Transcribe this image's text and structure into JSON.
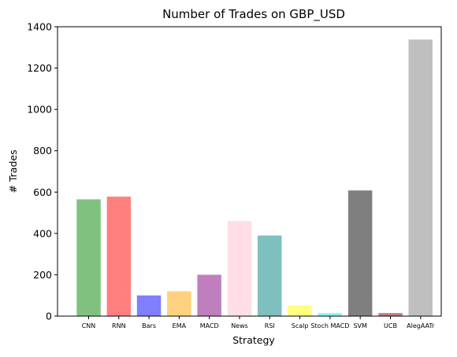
{
  "chart_data": {
    "type": "bar",
    "title": "Number of Trades on GBP_USD",
    "xlabel": "Strategy",
    "ylabel": "# Trades",
    "ylim": [
      0,
      1400
    ],
    "yticks": [
      0,
      200,
      400,
      600,
      800,
      1000,
      1200,
      1400
    ],
    "grid": false,
    "categories": [
      "CNN",
      "RNN",
      "Bars",
      "EMA",
      "MACD",
      "News",
      "RSI",
      "Scalp",
      "Stoch MACD",
      "SVM",
      "UCB",
      "AlegAATr"
    ],
    "values": [
      565,
      578,
      100,
      120,
      200,
      460,
      390,
      52,
      15,
      608,
      15,
      1338
    ],
    "colors": [
      "#7fc27f",
      "#ff7f7f",
      "#7f7fff",
      "#ffd27f",
      "#bf7fbf",
      "#ffdfe5",
      "#7fbfbf",
      "#ffff7f",
      "#7fffff",
      "#7f7f7f",
      "#c08080",
      "#bfbfbf"
    ]
  }
}
